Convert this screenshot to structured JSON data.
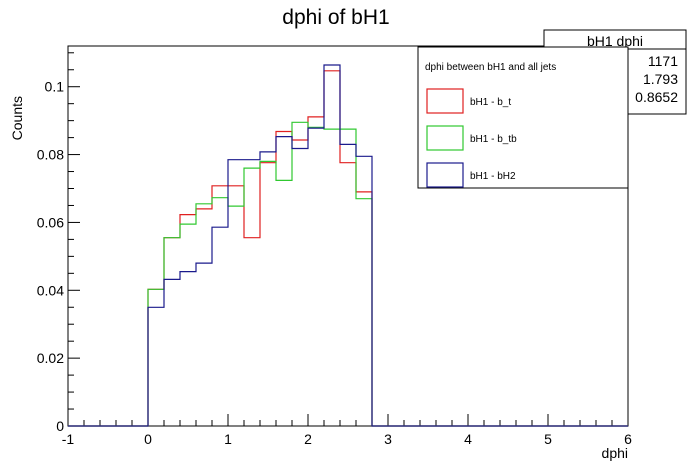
{
  "chart_data": {
    "type": "step-histogram",
    "title": "dphi of bH1",
    "xlabel": "dphi",
    "ylabel": "Counts",
    "xlim": [
      -1,
      6
    ],
    "ylim": [
      0,
      0.112
    ],
    "xticks": [
      "-1",
      "0",
      "1",
      "2",
      "3",
      "4",
      "5",
      "6"
    ],
    "yticks": [
      "0",
      "0.02",
      "0.04",
      "0.06",
      "0.08",
      "0.1"
    ],
    "bin_edges": [
      -0.0,
      0.2,
      0.4,
      0.6,
      0.8,
      1.0,
      1.2,
      1.4,
      1.6,
      1.8,
      2.0,
      2.2,
      2.4,
      2.6,
      2.8,
      3.0,
      3.2
    ],
    "series": [
      {
        "name": "bH1 - b_t",
        "color": "#e02020",
        "values": [
          0.0403,
          0.0555,
          0.0623,
          0.064,
          0.0708,
          0.0708,
          0.0555,
          0.0776,
          0.0868,
          0.0843,
          0.0911,
          0.1047,
          0.0776,
          0.069,
          0.0,
          0.0
        ]
      },
      {
        "name": "bH1 - b_tb",
        "color": "#30c830",
        "values": [
          0.0403,
          0.0555,
          0.0595,
          0.0655,
          0.0673,
          0.0648,
          0.076,
          0.078,
          0.0724,
          0.0895,
          0.088,
          0.0875,
          0.0875,
          0.067,
          0.0,
          0.0
        ]
      },
      {
        "name": "bH1 - bH2",
        "color": "#1a1a8c",
        "values": [
          0.035,
          0.0432,
          0.0455,
          0.048,
          0.0586,
          0.0785,
          0.0785,
          0.0808,
          0.0853,
          0.0818,
          0.0878,
          0.1064,
          0.083,
          0.0795,
          0.0,
          0.0
        ]
      }
    ],
    "legend": {
      "title": "dphi between bH1 and all jets",
      "placement": "top-right"
    },
    "stats_box": {
      "title": "bH1 dphi",
      "values": [
        "1171",
        "1.793",
        "0.8652"
      ],
      "placement": "top-right"
    }
  }
}
